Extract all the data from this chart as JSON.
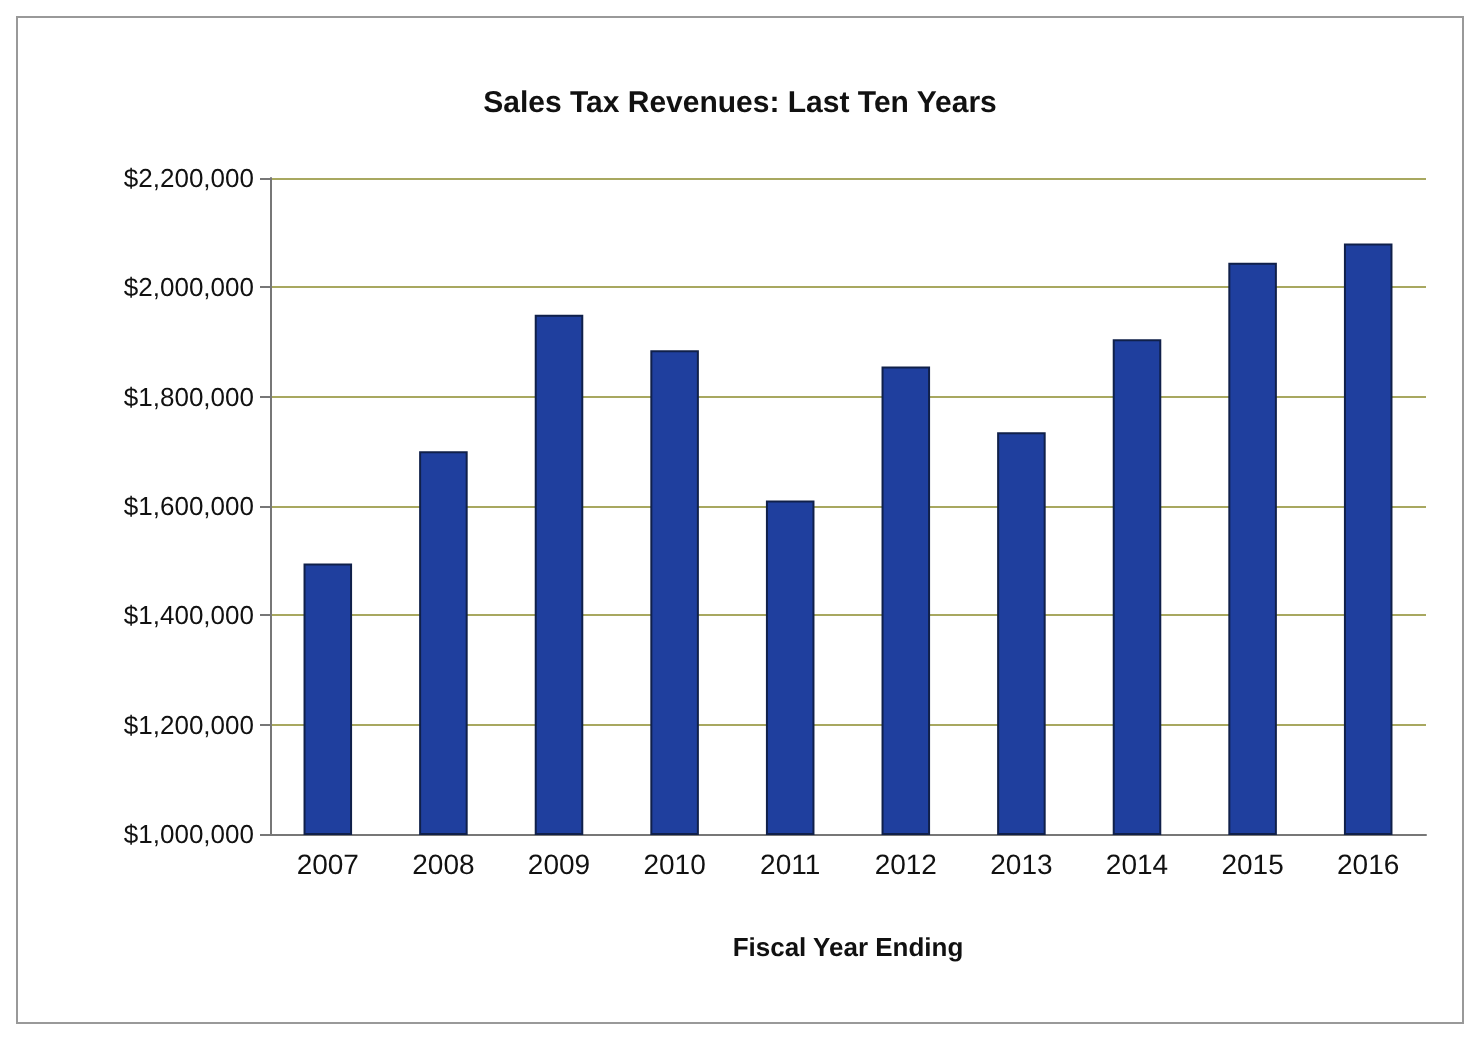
{
  "chart_data": {
    "type": "bar",
    "title": "Sales Tax Revenues: Last Ten Years",
    "xlabel": "Fiscal Year Ending",
    "categories": [
      "2007",
      "2008",
      "2009",
      "2010",
      "2011",
      "2012",
      "2013",
      "2014",
      "2015",
      "2016"
    ],
    "values": [
      1495000,
      1700000,
      1950000,
      1885000,
      1610000,
      1855000,
      1735000,
      1905000,
      2045000,
      2080000
    ],
    "color": "#1f3f9e",
    "ylim": [
      1000000,
      2200000
    ],
    "yticks": [
      {
        "value": 1000000,
        "label": "$1,000,000"
      },
      {
        "value": 1200000,
        "label": "$1,200,000"
      },
      {
        "value": 1400000,
        "label": "$1,400,000"
      },
      {
        "value": 1600000,
        "label": "$1,600,000"
      },
      {
        "value": 1800000,
        "label": "$1,800,000"
      },
      {
        "value": 2000000,
        "label": "$2,000,000"
      },
      {
        "value": 2200000,
        "label": "$2,200,000"
      }
    ],
    "grid": "y"
  }
}
